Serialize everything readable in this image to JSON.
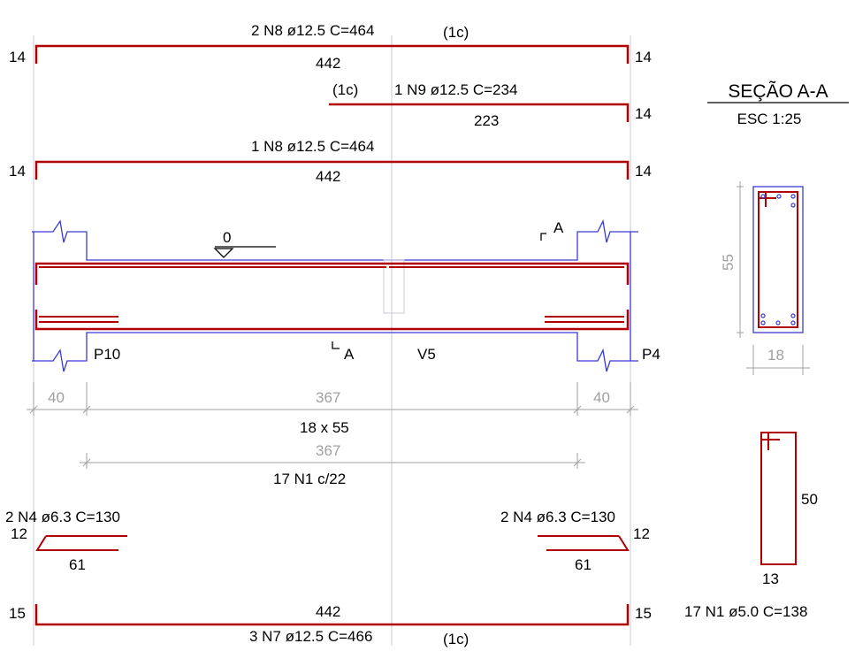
{
  "bars": {
    "top1": {
      "label": "2 N8 ø12.5  C=464",
      "layer": "(1c)",
      "length": "442",
      "hook_left": "14",
      "hook_right": "14"
    },
    "top2": {
      "label": "1 N9 ø12.5  C=234",
      "layer": "(1c)",
      "length": "223",
      "hook_right": "14"
    },
    "top3": {
      "label": "1 N8 ø12.5  C=464",
      "length": "442",
      "hook_left": "14",
      "hook_right": "14"
    },
    "left_n4": {
      "label": "2 N4 ø6.3  C=130",
      "hook": "12",
      "length": "61"
    },
    "right_n4": {
      "label": "2 N4 ø6.3  C=130",
      "hook": "12",
      "length": "61"
    },
    "bottom": {
      "label": "3 N7 ø12.5  C=466",
      "layer": "(1c)",
      "length": "442",
      "hook_left": "15",
      "hook_right": "15"
    }
  },
  "elevation": {
    "level_mark": "0",
    "support_left": "P10",
    "support_right": "P4",
    "beam_name": "V5",
    "section_mark_left": "A",
    "section_mark_right": "A"
  },
  "dimensions": {
    "left_support": "40",
    "span": "367",
    "right_support": "40",
    "beam_size": "18 x 55",
    "stirrup_span": "367",
    "stirrup_spacing": "17 N1 c/22"
  },
  "section": {
    "title": "SEÇÃO A-A",
    "scale": "ESC 1:25",
    "height": "55",
    "width": "18"
  },
  "stirrup": {
    "height": "50",
    "width": "13",
    "label": "17 N1 ø5.0  C=138"
  },
  "colors": {
    "rebar": "#b00000",
    "outline": "#3a3ad6",
    "dimension": "#a0a0a0",
    "text": "#000000"
  }
}
